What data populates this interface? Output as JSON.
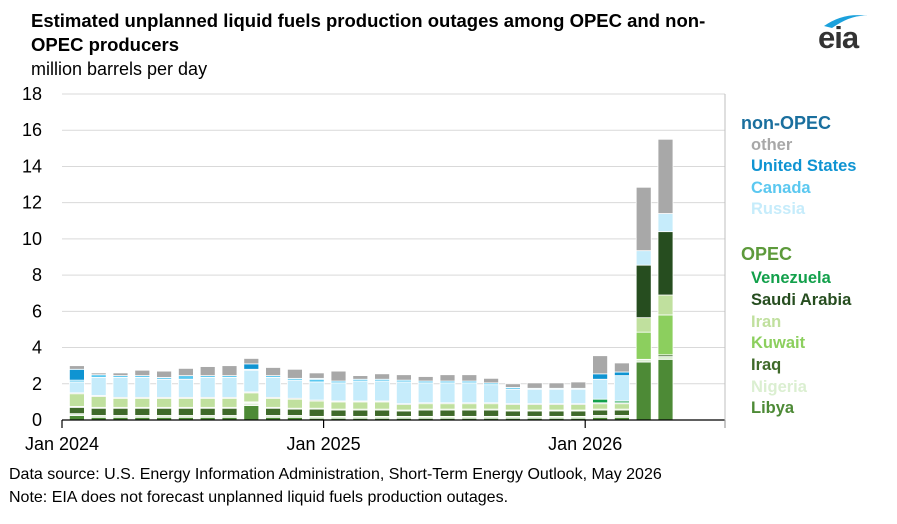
{
  "header": {
    "title": "Estimated unplanned liquid fuels production outages among OPEC and non-OPEC producers",
    "units": "million barrels per day",
    "logo_text": "eia"
  },
  "colors": {
    "other": "#a8a8a8",
    "united_states": "#0f94d2",
    "canada": "#5bc8f0",
    "russia": "#c6ecfb",
    "venezuela": "#12a04b",
    "saudi_arabia": "#264d1f",
    "iran": "#c0e09e",
    "kuwait": "#8ccf5e",
    "iraq": "#3f6a2a",
    "nigeria": "#dbefd1",
    "libya": "#4d8a36",
    "non_opec_heading": "#1a6f9e",
    "opec_heading": "#5d9a3b"
  },
  "legend": {
    "non_opec_heading": "non-OPEC",
    "opec_heading": "OPEC",
    "items": [
      "other",
      "United States",
      "Canada",
      "Russia",
      "Venezuela",
      "Saudi Arabia",
      "Iran",
      "Kuwait",
      "Iraq",
      "Nigeria",
      "Libya"
    ]
  },
  "footer": {
    "source": "Data source: U.S. Energy Information Administration, Short-Term Energy Outlook, May 2026",
    "note": "Note: EIA does not forecast unplanned liquid fuels production outages."
  },
  "chart_data": {
    "type": "bar",
    "stacked": true,
    "ylim": [
      0,
      18
    ],
    "yticks": [
      0,
      2,
      4,
      6,
      8,
      10,
      12,
      14,
      16,
      18
    ],
    "x_tick_labels": [
      "Jan 2024",
      "Jan 2025",
      "Jan 2026"
    ],
    "grid": "horizontal",
    "legend_position": "right",
    "categories": [
      "2024-01",
      "2024-02",
      "2024-03",
      "2024-04",
      "2024-05",
      "2024-06",
      "2024-07",
      "2024-08",
      "2024-09",
      "2024-10",
      "2024-11",
      "2024-12",
      "2025-01",
      "2025-02",
      "2025-03",
      "2025-04",
      "2025-05",
      "2025-06",
      "2025-07",
      "2025-08",
      "2025-09",
      "2025-10",
      "2025-11",
      "2025-12",
      "2026-01",
      "2026-02",
      "2026-03",
      "2026-04"
    ],
    "series": [
      {
        "name": "Libya",
        "values": [
          0.25,
          0.15,
          0.15,
          0.15,
          0.15,
          0.15,
          0.15,
          0.15,
          0.8,
          0.15,
          0.15,
          0.1,
          0.1,
          0.1,
          0.1,
          0.1,
          0.1,
          0.1,
          0.1,
          0.1,
          0.1,
          0.1,
          0.1,
          0.1,
          0.15,
          0.15,
          3.2,
          3.35
        ]
      },
      {
        "name": "Nigeria",
        "values": [
          0.1,
          0.1,
          0.1,
          0.1,
          0.1,
          0.1,
          0.1,
          0.1,
          0.1,
          0.1,
          0.1,
          0.1,
          0.1,
          0.1,
          0.1,
          0.1,
          0.1,
          0.1,
          0.1,
          0.1,
          0.1,
          0.1,
          0.1,
          0.1,
          0.1,
          0.1,
          0.15,
          0.15
        ]
      },
      {
        "name": "Iraq",
        "values": [
          0.35,
          0.4,
          0.4,
          0.4,
          0.4,
          0.4,
          0.4,
          0.4,
          0.05,
          0.4,
          0.35,
          0.4,
          0.35,
          0.35,
          0.35,
          0.3,
          0.35,
          0.35,
          0.35,
          0.35,
          0.3,
          0.3,
          0.3,
          0.3,
          0.3,
          0.3,
          0.0,
          0.1
        ]
      },
      {
        "name": "Kuwait",
        "values": [
          0.05,
          0.05,
          0.05,
          0.05,
          0.05,
          0.05,
          0.05,
          0.05,
          0.05,
          0.05,
          0.05,
          0.05,
          0.05,
          0.05,
          0.05,
          0.05,
          0.05,
          0.05,
          0.05,
          0.05,
          0.05,
          0.05,
          0.05,
          0.05,
          0.05,
          0.05,
          1.5,
          2.2
        ]
      },
      {
        "name": "Iran",
        "values": [
          0.7,
          0.6,
          0.5,
          0.5,
          0.5,
          0.5,
          0.5,
          0.5,
          0.5,
          0.5,
          0.5,
          0.4,
          0.4,
          0.4,
          0.4,
          0.3,
          0.3,
          0.3,
          0.3,
          0.3,
          0.3,
          0.3,
          0.3,
          0.3,
          0.3,
          0.3,
          0.8,
          1.1
        ]
      },
      {
        "name": "Saudi Arabia",
        "values": [
          0.05,
          0.05,
          0.05,
          0.05,
          0.05,
          0.05,
          0.05,
          0.05,
          0.05,
          0.05,
          0.05,
          0.05,
          0.05,
          0.05,
          0.05,
          0.05,
          0.05,
          0.05,
          0.05,
          0.05,
          0.05,
          0.05,
          0.05,
          0.05,
          0.05,
          0.05,
          2.9,
          3.5
        ]
      },
      {
        "name": "Venezuela",
        "values": [
          0.0,
          0.0,
          0.0,
          0.0,
          0.0,
          0.0,
          0.0,
          0.0,
          0.0,
          0.0,
          0.0,
          0.0,
          0.0,
          0.0,
          0.0,
          0.0,
          0.0,
          0.0,
          0.0,
          0.0,
          0.0,
          0.0,
          0.0,
          0.0,
          0.2,
          0.1,
          0.0,
          0.0
        ]
      },
      {
        "name": "Russia",
        "values": [
          0.6,
          1.0,
          1.1,
          1.1,
          1.0,
          1.0,
          1.1,
          1.1,
          1.2,
          1.1,
          1.0,
          1.0,
          1.0,
          1.1,
          1.1,
          1.2,
          1.1,
          1.1,
          1.1,
          1.0,
          0.8,
          0.8,
          0.8,
          0.8,
          1.1,
          1.4,
          0.8,
          1.0
        ]
      },
      {
        "name": "Canada",
        "values": [
          0.1,
          0.15,
          0.1,
          0.1,
          0.1,
          0.2,
          0.1,
          0.1,
          0.05,
          0.1,
          0.1,
          0.15,
          0.1,
          0.1,
          0.1,
          0.1,
          0.1,
          0.1,
          0.1,
          0.1,
          0.1,
          0.05,
          0.05,
          0.05,
          0.0,
          0.0,
          0.0,
          0.0
        ]
      },
      {
        "name": "United States",
        "values": [
          0.6,
          0.0,
          0.0,
          0.0,
          0.0,
          0.0,
          0.0,
          0.0,
          0.3,
          0.0,
          0.0,
          0.05,
          0.0,
          0.0,
          0.0,
          0.0,
          0.0,
          0.0,
          0.0,
          0.0,
          0.0,
          0.0,
          0.0,
          0.0,
          0.3,
          0.2,
          0.0,
          0.0
        ]
      },
      {
        "name": "other",
        "values": [
          0.2,
          0.1,
          0.15,
          0.3,
          0.35,
          0.4,
          0.5,
          0.55,
          0.3,
          0.45,
          0.5,
          0.3,
          0.55,
          0.2,
          0.3,
          0.3,
          0.25,
          0.35,
          0.35,
          0.25,
          0.2,
          0.3,
          0.3,
          0.35,
          1.0,
          0.5,
          3.5,
          4.1
        ]
      }
    ]
  }
}
